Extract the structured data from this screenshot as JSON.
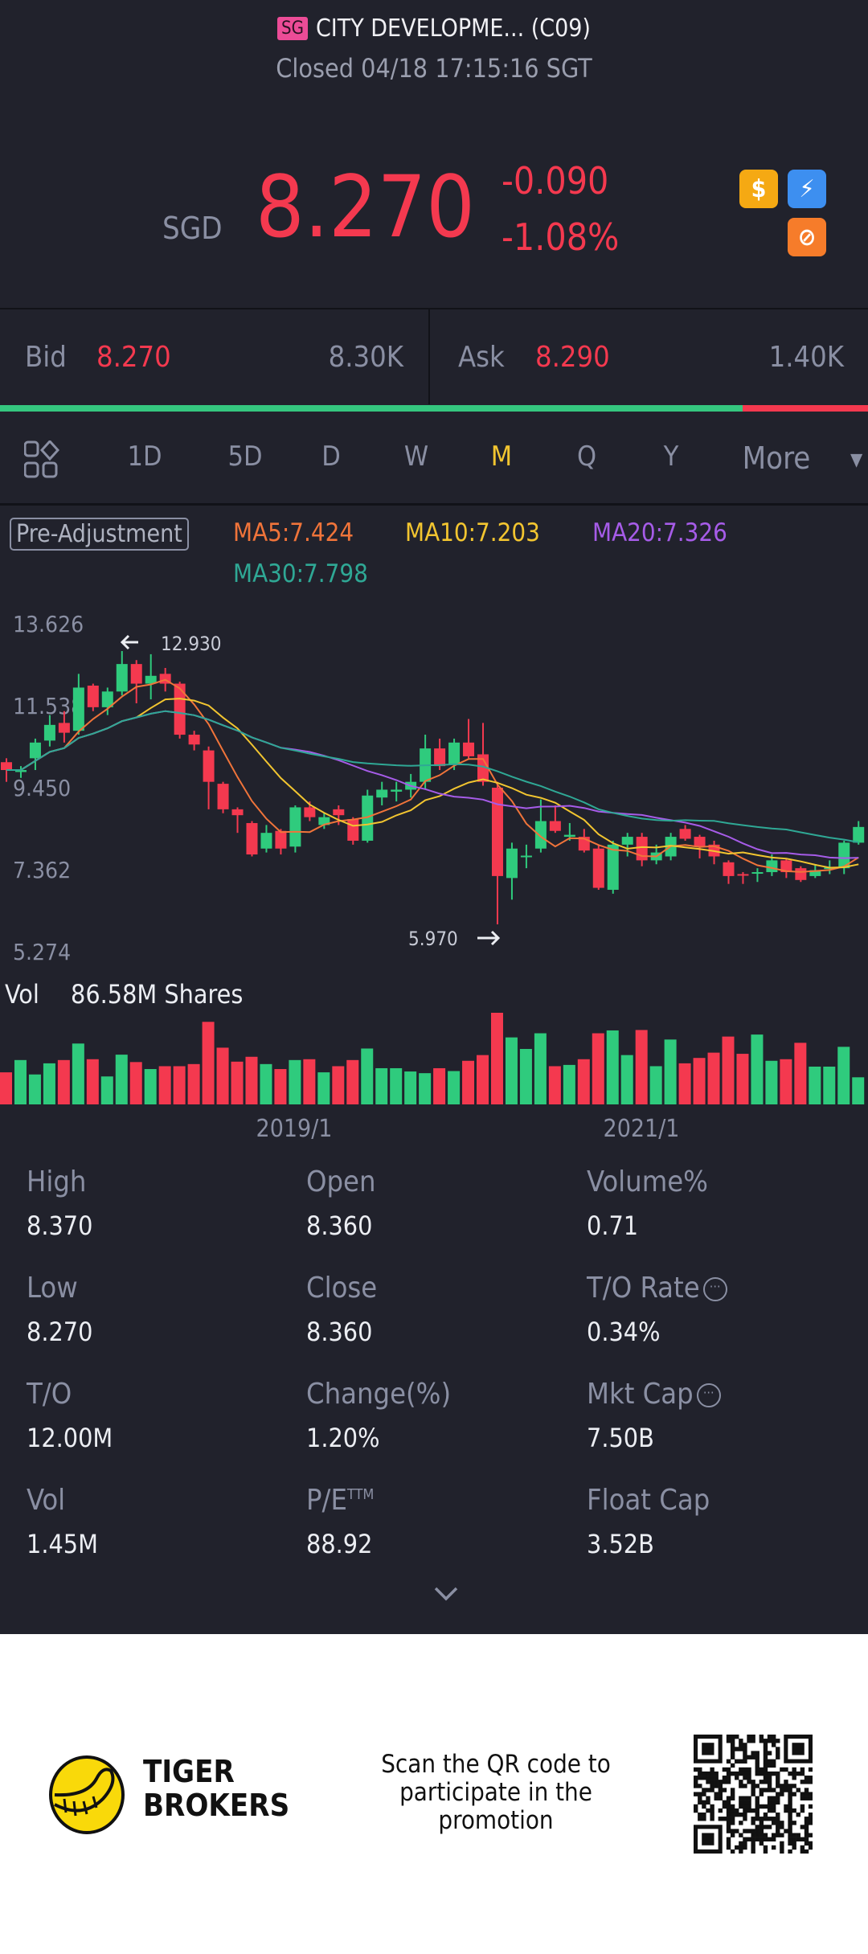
{
  "header": {
    "market_badge": "SG",
    "title": "CITY DEVELOPME... (C09)",
    "status": "Closed 04/18 17:15:16 SGT"
  },
  "quote": {
    "currency": "SGD",
    "price": "8.270",
    "change": "-0.090",
    "change_pct": "-1.08%",
    "icons": [
      "dollar-icon",
      "lightning-icon",
      "swap-icon"
    ]
  },
  "orderbook": {
    "bid_label": "Bid",
    "bid_price": "8.270",
    "bid_size": "8.30K",
    "ask_label": "Ask",
    "ask_price": "8.290",
    "ask_size": "1.40K",
    "bid_ratio_pct": 85.6
  },
  "tabs": {
    "items": [
      "1D",
      "5D",
      "D",
      "W",
      "M",
      "Q",
      "Y",
      "More"
    ],
    "active": "M"
  },
  "indicators": {
    "adjustment": "Pre-Adjustment",
    "ma5": "MA5:7.424",
    "ma10": "MA10:7.203",
    "ma20": "MA20:7.326",
    "ma30": "MA30:7.798"
  },
  "colors": {
    "up": "#2fcb7d",
    "down": "#f4394f",
    "ma5": "#f0743a",
    "ma10": "#f2c530",
    "ma20": "#a65ce8",
    "ma30": "#2fa895",
    "active_tab": "#f2c530"
  },
  "chart_data": {
    "type": "candlestick",
    "y_ticks": [
      "13.626",
      "11.538",
      "9.450",
      "7.362",
      "5.274"
    ],
    "ylim": [
      5.274,
      13.626
    ],
    "x_ticks": [
      "2019/1",
      "2021/1"
    ],
    "high_marker": "12.930",
    "low_marker": "5.970",
    "candles": [
      [
        10.1,
        9.9,
        10.2,
        9.6
      ],
      [
        9.85,
        9.9,
        10.0,
        9.7
      ],
      [
        10.2,
        10.6,
        10.7,
        9.9
      ],
      [
        10.65,
        11.05,
        11.3,
        10.5
      ],
      [
        11.1,
        10.85,
        11.4,
        10.6
      ],
      [
        10.9,
        12.0,
        12.35,
        10.8
      ],
      [
        12.05,
        11.5,
        12.1,
        11.4
      ],
      [
        11.5,
        11.9,
        12.0,
        11.3
      ],
      [
        11.9,
        12.6,
        12.93,
        11.8
      ],
      [
        12.6,
        12.1,
        12.7,
        11.6
      ],
      [
        12.1,
        12.3,
        12.85,
        11.7
      ],
      [
        12.35,
        12.1,
        12.5,
        11.9
      ],
      [
        12.1,
        10.8,
        12.15,
        10.7
      ],
      [
        10.8,
        10.55,
        10.9,
        10.4
      ],
      [
        10.4,
        9.6,
        10.5,
        8.9
      ],
      [
        9.55,
        8.9,
        9.6,
        8.8
      ],
      [
        8.9,
        8.75,
        8.95,
        8.3
      ],
      [
        8.55,
        7.75,
        8.6,
        7.7
      ],
      [
        7.9,
        8.3,
        8.5,
        7.8
      ],
      [
        8.35,
        7.9,
        8.4,
        7.75
      ],
      [
        7.95,
        8.95,
        9.0,
        7.8
      ],
      [
        8.95,
        8.7,
        9.1,
        8.6
      ],
      [
        8.5,
        8.7,
        8.8,
        8.4
      ],
      [
        8.9,
        8.75,
        9.0,
        8.5
      ],
      [
        8.65,
        8.1,
        8.7,
        8.0
      ],
      [
        8.1,
        9.25,
        9.4,
        8.05
      ],
      [
        9.2,
        9.4,
        9.6,
        9.0
      ],
      [
        9.35,
        9.4,
        9.6,
        9.1
      ],
      [
        9.4,
        9.6,
        9.8,
        9.2
      ],
      [
        9.6,
        10.45,
        10.8,
        9.4
      ],
      [
        10.45,
        10.0,
        10.7,
        9.9
      ],
      [
        10.05,
        10.6,
        10.7,
        9.9
      ],
      [
        10.6,
        10.25,
        11.2,
        10.2
      ],
      [
        10.3,
        9.6,
        11.1,
        9.5
      ],
      [
        9.45,
        7.2,
        9.6,
        5.97
      ],
      [
        7.15,
        7.9,
        8.05,
        6.6
      ],
      [
        7.7,
        7.72,
        8.0,
        7.4
      ],
      [
        7.9,
        8.6,
        9.15,
        7.8
      ],
      [
        8.6,
        8.35,
        9.0,
        8.3
      ],
      [
        8.2,
        8.25,
        8.55,
        8.1
      ],
      [
        8.2,
        7.85,
        8.4,
        7.8
      ],
      [
        7.9,
        6.9,
        8.0,
        6.85
      ],
      [
        6.85,
        8.0,
        8.1,
        6.75
      ],
      [
        8.0,
        8.2,
        8.3,
        7.7
      ],
      [
        8.2,
        7.6,
        8.3,
        7.45
      ],
      [
        7.6,
        7.8,
        8.0,
        7.5
      ],
      [
        7.7,
        8.2,
        8.3,
        7.6
      ],
      [
        8.4,
        8.15,
        8.5,
        8.1
      ],
      [
        8.2,
        7.95,
        8.25,
        7.65
      ],
      [
        8.0,
        7.7,
        8.1,
        7.5
      ],
      [
        7.55,
        7.2,
        7.6,
        7.0
      ],
      [
        7.25,
        7.22,
        7.3,
        7.0
      ],
      [
        7.28,
        7.3,
        7.4,
        7.05
      ],
      [
        7.3,
        7.6,
        7.75,
        7.2
      ],
      [
        7.6,
        7.3,
        7.65,
        7.15
      ],
      [
        7.4,
        7.1,
        7.45,
        7.05
      ],
      [
        7.2,
        7.35,
        7.5,
        7.15
      ],
      [
        7.4,
        7.42,
        7.6,
        7.25
      ],
      [
        7.4,
        8.05,
        8.1,
        7.25
      ],
      [
        8.05,
        8.45,
        8.6,
        8.0
      ]
    ],
    "volume_label": "Vol",
    "volume_max": "86.58M Shares",
    "volumes_m": [
      30.3,
      41.9,
      28.3,
      38.8,
      41.9,
      57.5,
      42.7,
      26.4,
      47.0,
      40.0,
      33.4,
      36.1,
      36.1,
      38.1,
      78.0,
      53.6,
      40.4,
      45.0,
      38.1,
      33.4,
      41.9,
      42.7,
      30.3,
      36.1,
      41.9,
      52.8,
      34.2,
      34.2,
      31.1,
      29.5,
      34.2,
      31.5,
      41.2,
      46.6,
      86.58,
      63.3,
      52.4,
      67.2,
      36.1,
      37.3,
      42.7,
      67.2,
      69.9,
      46.6,
      70.3,
      36.1,
      61.3,
      38.8,
      43.9,
      48.9,
      64.1,
      47.8,
      66.0,
      41.2,
      42.7,
      58.2,
      35.7,
      35.7,
      54.4,
      25.6
    ]
  },
  "stats": [
    {
      "label": "High",
      "value": "8.370"
    },
    {
      "label": "Open",
      "value": "8.360"
    },
    {
      "label": "Volume%",
      "value": "0.71"
    },
    {
      "label": "Low",
      "value": "8.270"
    },
    {
      "label": "Close",
      "value": "8.360"
    },
    {
      "label": "T/O Rate",
      "value": "0.34%",
      "info": true
    },
    {
      "label": "T/O",
      "value": "12.00M"
    },
    {
      "label": "Change(%)",
      "value": "1.20%"
    },
    {
      "label": "Mkt Cap",
      "value": "7.50B",
      "info": true
    },
    {
      "label": "Vol",
      "value": "1.45M"
    },
    {
      "label": "P/E",
      "sup": "TTM",
      "value": "88.92"
    },
    {
      "label": "Float Cap",
      "value": "3.52B"
    }
  ],
  "footer": {
    "brand_line1": "TIGER",
    "brand_line2": "BROKERS",
    "promo": "Scan the QR code to participate in the promotion"
  }
}
